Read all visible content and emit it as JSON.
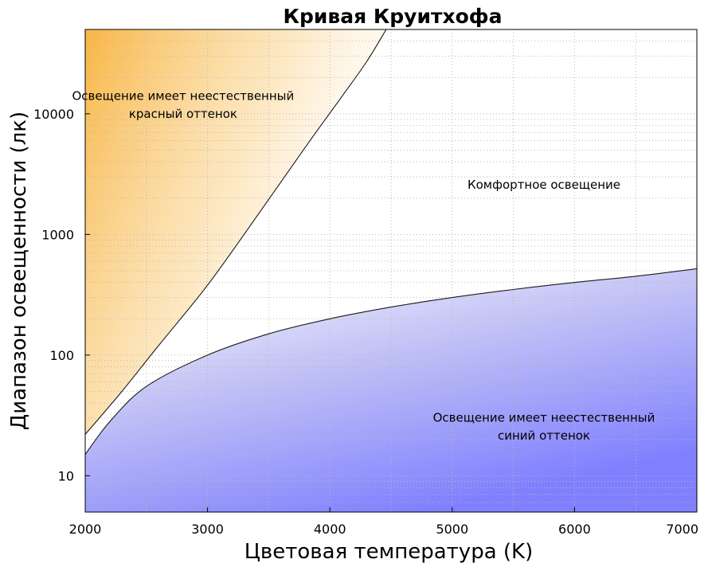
{
  "chart_data": {
    "type": "area",
    "title": "Кривая Круитхофа",
    "xlabel": "Цветовая температура (K)",
    "ylabel": "Диапазон освещенности (лк)",
    "xlim": [
      2000,
      7000
    ],
    "ylim": [
      5,
      50000
    ],
    "yscale": "log",
    "grid": true,
    "x_ticks": [
      2000,
      3000,
      4000,
      5000,
      6000,
      7000
    ],
    "y_ticks": [
      10,
      100,
      1000,
      10000
    ],
    "colors": {
      "warm": "#f8b646",
      "cool": "#8080ff",
      "curve": "#1a1a1a"
    },
    "series": [
      {
        "name": "",
        "x": [
          2000,
          2300,
          2600,
          3000,
          3400,
          3800,
          4100,
          4300,
          4460
        ],
        "y": [
          22,
          50,
          120,
          380,
          1400,
          5300,
          14000,
          27000,
          50000
        ]
      },
      {
        "name": "",
        "x": [
          2000,
          2200,
          2500,
          3000,
          3500,
          4000,
          4500,
          5000,
          5500,
          6000,
          6500,
          7000
        ],
        "y": [
          15,
          28,
          55,
          100,
          150,
          200,
          250,
          300,
          350,
          400,
          450,
          520
        ]
      }
    ],
    "annotations": [
      {
        "text": [
          "Освещение имеет неестественный",
          "красный оттенок"
        ],
        "x": 2800,
        "y": 13000
      },
      {
        "text": [
          "Комфортное освещение"
        ],
        "x": 5750,
        "y": 2400
      },
      {
        "text": [
          "Освещение имеет неестественный",
          "синий оттенок"
        ],
        "x": 5750,
        "y": 28
      }
    ]
  }
}
